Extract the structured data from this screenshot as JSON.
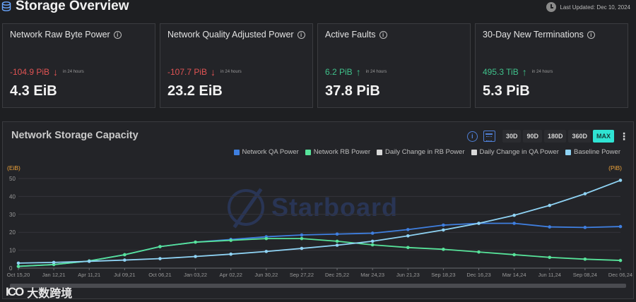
{
  "header": {
    "title": "Storage Overview",
    "last_updated": "Last Updated: Dec 10, 2024"
  },
  "cards": [
    {
      "title": "Network Raw Byte Power",
      "change": "-104.9 PiB",
      "direction": "down",
      "period": "in 24 hours",
      "value": "4.3 EiB"
    },
    {
      "title": "Network Quality Adjusted Power",
      "change": "-107.7 PiB",
      "direction": "down",
      "period": "in 24 hours",
      "value": "23.2 EiB"
    },
    {
      "title": "Active Faults",
      "change": "6.2 PiB",
      "direction": "up",
      "period": "in 24 hours",
      "value": "37.8 PiB"
    },
    {
      "title": "30-Day New Terminations",
      "change": "495.3 TiB",
      "direction": "up",
      "period": "in 24 hours",
      "value": "5.3 PiB"
    }
  ],
  "chart_panel": {
    "title": "Network Storage Capacity",
    "ranges": [
      "30D",
      "90D",
      "180D",
      "360D",
      "MAX"
    ],
    "active_range": "MAX",
    "watermark": "Starboard"
  },
  "chart_data": {
    "type": "line",
    "left_unit": "(EiB)",
    "right_unit": "(PiB)",
    "ylim": [
      0,
      50
    ],
    "yticks": [
      0,
      10,
      20,
      30,
      40,
      50
    ],
    "x_labels": [
      "Oct 15,20",
      "Jan 12,21",
      "Apr 11,21",
      "Jul 09,21",
      "Oct 06,21",
      "Jan 03,22",
      "Apr 02,22",
      "Jun 30,22",
      "Sep 27,22",
      "Dec 25,22",
      "Mar 24,23",
      "Jun 21,23",
      "Sep 18,23",
      "Dec 16,23",
      "Mar 14,24",
      "Jun 11,24",
      "Sep 08,24",
      "Dec 06,24"
    ],
    "legend": [
      {
        "name": "Network QA Power",
        "color": "#3f7fe0"
      },
      {
        "name": "Network RB Power",
        "color": "#57e39a"
      },
      {
        "name": "Daily Change in RB Power",
        "color": "#d9d9d9"
      },
      {
        "name": "Daily Change in QA Power",
        "color": "#d9d9d9"
      },
      {
        "name": "Baseline Power",
        "color": "#8fd3f4"
      }
    ],
    "series": [
      {
        "name": "Network QA Power",
        "color": "#3f7fe0",
        "x": [
          0,
          1,
          2,
          3,
          4,
          5,
          6,
          7,
          8,
          9,
          10,
          11,
          12,
          13,
          14,
          15,
          16,
          17
        ],
        "values": [
          1.0,
          2.0,
          4.0,
          7.5,
          12.0,
          14.5,
          16.0,
          17.5,
          18.5,
          19.0,
          19.5,
          21.5,
          24.0,
          25.0,
          25.0,
          23.0,
          22.7,
          23.2
        ]
      },
      {
        "name": "Network RB Power",
        "color": "#57e39a",
        "x": [
          0,
          1,
          2,
          3,
          4,
          5,
          6,
          7,
          8,
          9,
          10,
          11,
          12,
          13,
          14,
          15,
          16,
          17
        ],
        "values": [
          1.0,
          2.0,
          4.0,
          7.5,
          12.0,
          14.5,
          15.5,
          16.5,
          16.5,
          15.0,
          13.0,
          11.5,
          10.5,
          9.0,
          7.5,
          6.0,
          5.0,
          4.3
        ]
      },
      {
        "name": "Baseline Power",
        "color": "#8fd3f4",
        "x": [
          0,
          1,
          2,
          3,
          4,
          5,
          6,
          7,
          8,
          9,
          10,
          11,
          12,
          13,
          14,
          15,
          16,
          17
        ],
        "values": [
          2.8,
          3.2,
          3.8,
          4.5,
          5.3,
          6.5,
          7.8,
          9.3,
          11.0,
          12.8,
          15.0,
          18.0,
          21.3,
          25.0,
          29.5,
          35.0,
          41.5,
          49.0
        ]
      }
    ]
  },
  "brand": {
    "name": "大数跨境",
    "mark": "ICO"
  }
}
